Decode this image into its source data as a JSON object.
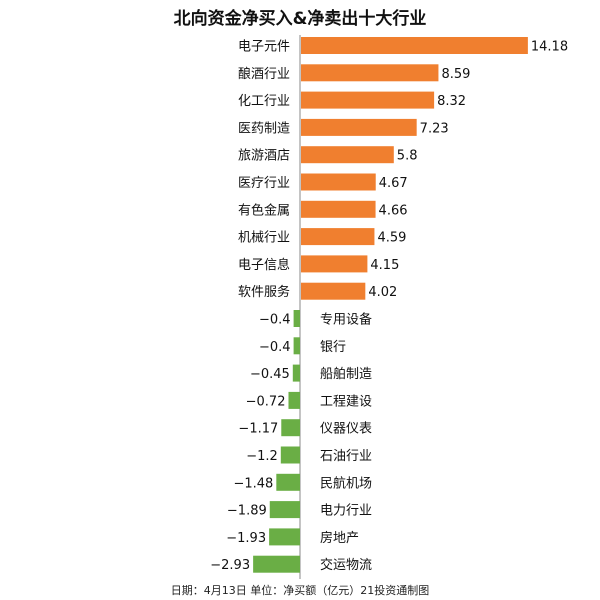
{
  "title": "北向资金净买入&净卖出十大行业",
  "footnote": "日期：4月13日 单位：净买额（亿元）21投资通制图",
  "colors": {
    "positive": "#F07F2F",
    "negative": "#6AAE45",
    "axis": "#888888",
    "text": "#111111"
  },
  "chart_data": {
    "type": "bar",
    "orientation": "horizontal",
    "title": "北向资金净买入&净卖出十大行业",
    "xlabel": "",
    "ylabel": "",
    "unit": "净买额（亿元）",
    "xlim": [
      -2.93,
      14.18
    ],
    "grid": false,
    "categories": [
      "电子元件",
      "酿酒行业",
      "化工行业",
      "医药制造",
      "旅游酒店",
      "医疗行业",
      "有色金属",
      "机械行业",
      "电子信息",
      "软件服务",
      "专用设备",
      "银行",
      "船舶制造",
      "工程建设",
      "仪器仪表",
      "石油行业",
      "民航机场",
      "电力行业",
      "房地产",
      "交运物流"
    ],
    "values": [
      14.18,
      8.59,
      8.32,
      7.23,
      5.8,
      4.67,
      4.66,
      4.59,
      4.15,
      4.02,
      -0.4,
      -0.4,
      -0.45,
      -0.72,
      -1.17,
      -1.2,
      -1.48,
      -1.89,
      -1.93,
      -2.93
    ],
    "value_labels": [
      "14.18",
      "8.59",
      "8.32",
      "7.23",
      "5.8",
      "4.67",
      "4.66",
      "4.59",
      "4.15",
      "4.02",
      "−0.4",
      "−0.4",
      "−0.45",
      "−0.72",
      "−1.17",
      "−1.2",
      "−1.48",
      "−1.89",
      "−1.93",
      "−2.93"
    ]
  }
}
